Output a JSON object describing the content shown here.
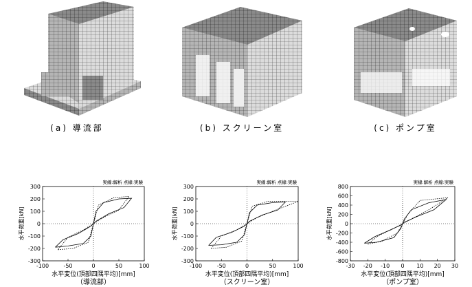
{
  "panels": [
    {
      "caption": "(a) 導流部"
    },
    {
      "caption": "(b) スクリーン室"
    },
    {
      "caption": "(c) ポンプ室"
    }
  ],
  "chart_data": [
    {
      "type": "line",
      "note": "実線:解析 点線:実験",
      "ylabel": "水平荷重[kN]",
      "xlabel": "水平変位(頂部四隅平均)[mm]",
      "caption": "（導流部）",
      "xlim": [
        -100,
        100
      ],
      "ylim": [
        -300,
        300
      ],
      "xticks": [
        -100,
        -50,
        0,
        50,
        100
      ],
      "yticks": [
        -300,
        -200,
        -100,
        0,
        100,
        200,
        300
      ],
      "series": [
        {
          "color": "#000000",
          "dash": "solid",
          "x": [
            -75,
            -50,
            -20,
            -5,
            0,
            5,
            20,
            50,
            75,
            60,
            30,
            5,
            0,
            -5,
            -30,
            -60,
            -75
          ],
          "values": [
            -190,
            -180,
            -160,
            -100,
            0,
            100,
            170,
            200,
            205,
            130,
            80,
            20,
            0,
            -20,
            -80,
            -130,
            -190
          ]
        },
        {
          "color": "#000000",
          "dash": "dotted",
          "x": [
            -70,
            -40,
            -10,
            0,
            10,
            40,
            70,
            50,
            20,
            0,
            -20,
            -50,
            -70
          ],
          "values": [
            -210,
            -200,
            -150,
            0,
            150,
            210,
            220,
            110,
            50,
            0,
            -50,
            -110,
            -210
          ]
        }
      ]
    },
    {
      "type": "line",
      "note": "実線:解析 点線:実験",
      "ylabel": "水平荷重[kN]",
      "xlabel": "水平変位(頂部四隅平均)[mm]",
      "caption": "（スクリーン室）",
      "xlim": [
        -100,
        100
      ],
      "ylim": [
        -300,
        300
      ],
      "xticks": [
        -100,
        -50,
        0,
        50,
        100
      ],
      "yticks": [
        -300,
        -200,
        -100,
        0,
        100,
        200,
        300
      ],
      "series": [
        {
          "color": "#000000",
          "dash": "solid",
          "x": [
            -75,
            -50,
            -20,
            -5,
            0,
            5,
            20,
            50,
            75,
            60,
            30,
            5,
            0,
            -5,
            -30,
            -60,
            -75
          ],
          "values": [
            -175,
            -170,
            -150,
            -90,
            0,
            90,
            150,
            170,
            175,
            110,
            70,
            20,
            0,
            -20,
            -70,
            -110,
            -175
          ]
        },
        {
          "color": "#000000",
          "dash": "dotted",
          "x": [
            -70,
            -40,
            -10,
            0,
            10,
            40,
            100,
            50,
            20,
            0,
            -20,
            -50,
            -70
          ],
          "values": [
            -200,
            -190,
            -140,
            0,
            140,
            180,
            180,
            100,
            50,
            0,
            -50,
            -100,
            -200
          ]
        }
      ]
    },
    {
      "type": "line",
      "note": "実線:解析 点線:実験",
      "ylabel": "水平荷重[kN]",
      "xlabel": "水平変位(頂部四隅平均)[mm]",
      "caption": "（ポンプ室）",
      "xlim": [
        -30,
        30
      ],
      "ylim": [
        -800,
        800
      ],
      "xticks": [
        -30,
        -20,
        -10,
        0,
        10,
        20,
        30
      ],
      "yticks": [
        -800,
        -600,
        -400,
        -200,
        0,
        200,
        400,
        600,
        800
      ],
      "series": [
        {
          "color": "#000000",
          "dash": "solid",
          "x": [
            -22,
            -15,
            -5,
            -1,
            0,
            1,
            5,
            15,
            25,
            18,
            8,
            1,
            0,
            -1,
            -8,
            -16,
            -22
          ],
          "values": [
            -420,
            -400,
            -300,
            -100,
            0,
            100,
            300,
            450,
            520,
            300,
            150,
            30,
            0,
            -30,
            -150,
            -280,
            -420
          ]
        },
        {
          "color": "#000000",
          "dash": "dotted",
          "x": [
            -20,
            -12,
            -3,
            0,
            3,
            10,
            26,
            15,
            6,
            0,
            -6,
            -14,
            -20
          ],
          "values": [
            -440,
            -380,
            -200,
            0,
            200,
            500,
            560,
            300,
            120,
            0,
            -120,
            -260,
            -440
          ]
        }
      ]
    }
  ]
}
